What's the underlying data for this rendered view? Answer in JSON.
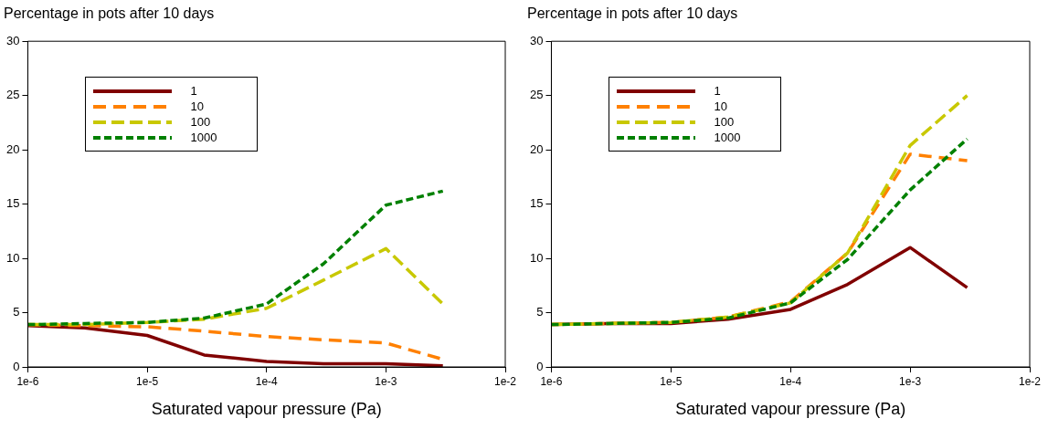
{
  "chart_data": [
    {
      "type": "line",
      "title": "Percentage in pots after 10 days",
      "xlabel": "Saturated vapour pressure (Pa)",
      "x": [
        1e-06,
        3e-06,
        1e-05,
        3e-05,
        0.0001,
        0.0003,
        0.001,
        0.003
      ],
      "log": "x",
      "xlim": [
        1e-06,
        0.01
      ],
      "xticks": [
        {
          "value": 1e-06,
          "label": "1e-6"
        },
        {
          "value": 1e-05,
          "label": "1e-5"
        },
        {
          "value": 0.0001,
          "label": "1e-4"
        },
        {
          "value": 0.001,
          "label": "1e-3"
        },
        {
          "value": 0.01,
          "label": "1e-2"
        }
      ],
      "ylim": [
        0,
        30
      ],
      "yticks": [
        0,
        5,
        10,
        15,
        20,
        25,
        30
      ],
      "legend": "top left",
      "marker": "none",
      "series": [
        {
          "name": "1",
          "color": "#800000",
          "line_style": "solid",
          "values": [
            3.8,
            3.6,
            2.9,
            1.1,
            0.5,
            0.3,
            0.3,
            0.1
          ]
        },
        {
          "name": "10",
          "color": "#ff8000",
          "line_style": "dashed",
          "values": [
            3.9,
            3.8,
            3.7,
            3.3,
            2.8,
            2.5,
            2.2,
            0.7
          ]
        },
        {
          "name": "100",
          "color": "#c8c800",
          "line_style": "dashed",
          "values": [
            3.9,
            3.9,
            4.1,
            4.4,
            5.4,
            8.0,
            10.9,
            5.8
          ]
        },
        {
          "name": "1000",
          "color": "#008000",
          "line_style": "dashed",
          "values": [
            3.9,
            4.0,
            4.1,
            4.5,
            5.8,
            9.5,
            14.9,
            16.2
          ]
        }
      ]
    },
    {
      "type": "line",
      "title": "Percentage in pots after 10 days",
      "xlabel": "Saturated vapour pressure (Pa)",
      "x": [
        1e-06,
        3e-06,
        1e-05,
        3e-05,
        0.0001,
        0.0003,
        0.001,
        0.003
      ],
      "log": "x",
      "xlim": [
        1e-06,
        0.01
      ],
      "xticks": [
        {
          "value": 1e-06,
          "label": "1e-6"
        },
        {
          "value": 1e-05,
          "label": "1e-5"
        },
        {
          "value": 0.0001,
          "label": "1e-4"
        },
        {
          "value": 0.001,
          "label": "1e-3"
        },
        {
          "value": 0.01,
          "label": "1e-2"
        }
      ],
      "ylim": [
        0,
        30
      ],
      "yticks": [
        0,
        5,
        10,
        15,
        20,
        25,
        30
      ],
      "legend": "top left",
      "marker": "none",
      "series": [
        {
          "name": "1",
          "color": "#800000",
          "line_style": "solid",
          "values": [
            3.9,
            4.0,
            4.0,
            4.4,
            5.3,
            7.6,
            11.0,
            7.3
          ]
        },
        {
          "name": "10",
          "color": "#ff8000",
          "line_style": "dashed",
          "values": [
            3.9,
            4.0,
            4.1,
            4.6,
            6.0,
            10.5,
            19.6,
            19.0
          ]
        },
        {
          "name": "100",
          "color": "#c8c800",
          "line_style": "dashed",
          "values": [
            3.9,
            4.0,
            4.1,
            4.6,
            5.9,
            10.5,
            20.4,
            25.0
          ]
        },
        {
          "name": "1000",
          "color": "#008000",
          "line_style": "dashed",
          "values": [
            3.9,
            4.0,
            4.1,
            4.5,
            5.9,
            9.9,
            16.3,
            21.0
          ]
        }
      ]
    }
  ]
}
